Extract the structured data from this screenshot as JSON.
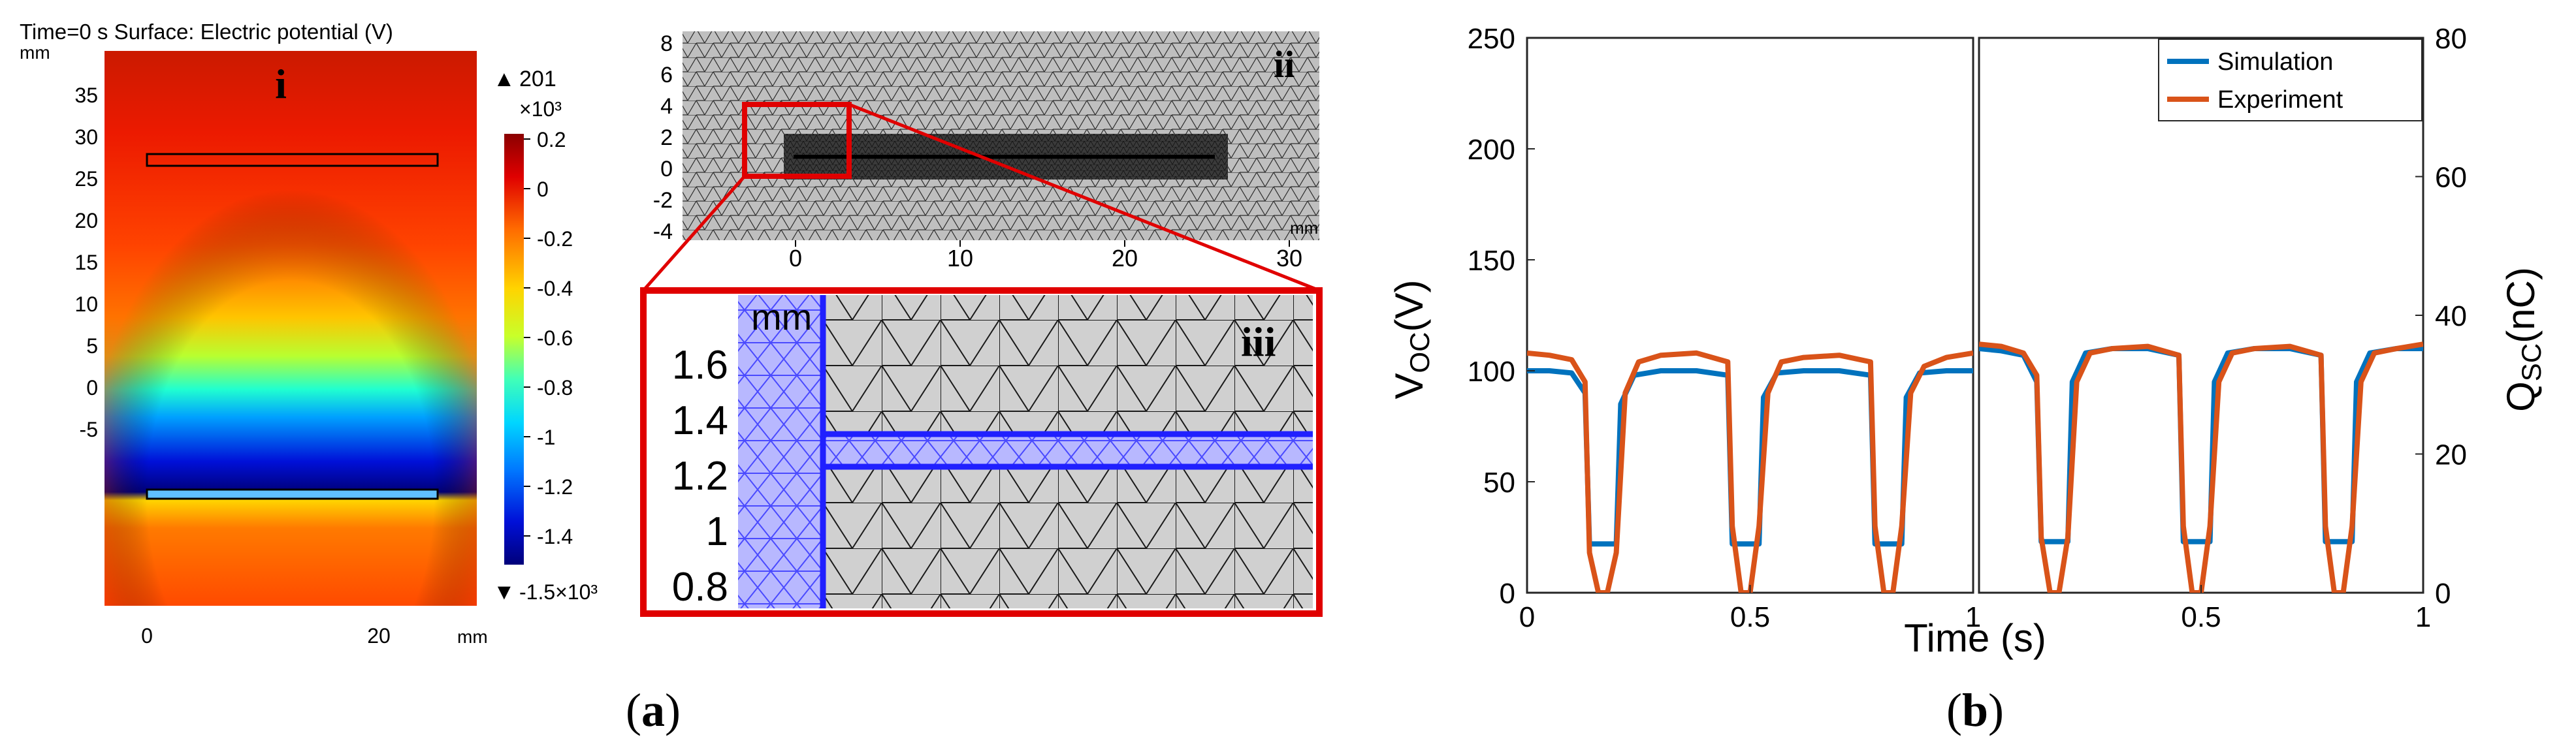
{
  "panel_a": {
    "caption": "(a)",
    "field_plot": {
      "header": "Time=0 s  Surface: Electric potential (V)",
      "label": "i",
      "y_unit": "mm",
      "x_unit": "mm",
      "y_ticks": [
        "35",
        "30",
        "25",
        "20",
        "15",
        "10",
        "5",
        "0",
        "-5"
      ],
      "x_ticks": [
        "0",
        "20"
      ],
      "colorbar": {
        "max_label": "201",
        "multiplier": "×10³",
        "ticks": [
          "0.2",
          "0",
          "-0.2",
          "-0.4",
          "-0.6",
          "-0.8",
          "-1",
          "-1.2",
          "-1.4"
        ],
        "min_label": "-1.5×10³",
        "colormap": "rainbow",
        "colors": [
          "#8b0000",
          "#e00000",
          "#ff6a00",
          "#ffd400",
          "#c8ff2a",
          "#40ffb8",
          "#00d6ff",
          "#0078ff",
          "#0010d8",
          "#00007a"
        ]
      }
    },
    "mesh_plot": {
      "label": "ii",
      "y_ticks": [
        "8",
        "6",
        "4",
        "2",
        "0",
        "-2",
        "-4"
      ],
      "x_ticks": [
        "0",
        "10",
        "20",
        "30"
      ],
      "unit": "mm",
      "highlight_color": "#e00000"
    },
    "zoom_plot": {
      "label": "iii",
      "unit": "mm",
      "y_ticks": [
        "1.6",
        "1.4",
        "1.2",
        "1",
        "0.8"
      ],
      "frame_color": "#e00000",
      "electrode_color": "#2020ff"
    }
  },
  "panel_b": {
    "caption": "(b)",
    "chart_data": {
      "type": "line",
      "xlabel": "Time (s)",
      "ylabel_left": "V_OC(V)",
      "ylabel_right": "Q_SC(nC)",
      "ylim_left": [
        0,
        250
      ],
      "ylim_right": [
        0,
        80
      ],
      "y_ticks_left": [
        0,
        50,
        100,
        150,
        200,
        250
      ],
      "y_ticks_right": [
        0,
        20,
        40,
        60,
        80
      ],
      "legend_position": "top-right",
      "subplots": [
        {
          "xlim": [
            0,
            1
          ],
          "x_ticks": [
            "0",
            "0.5",
            "1"
          ],
          "series": [
            {
              "name": "Simulation",
              "color": "#0072bd",
              "x": [
                0,
                0.05,
                0.1,
                0.13,
                0.14,
                0.2,
                0.21,
                0.24,
                0.3,
                0.38,
                0.45,
                0.46,
                0.52,
                0.53,
                0.56,
                0.62,
                0.7,
                0.77,
                0.78,
                0.84,
                0.85,
                0.88,
                0.94,
                1.0
              ],
              "y": [
                100,
                100,
                99,
                90,
                22,
                22,
                85,
                98,
                100,
                100,
                98,
                22,
                22,
                88,
                99,
                100,
                100,
                98,
                22,
                22,
                88,
                99,
                100,
                100
              ]
            },
            {
              "name": "Experiment",
              "color": "#d95319",
              "x": [
                0,
                0.05,
                0.1,
                0.13,
                0.14,
                0.16,
                0.18,
                0.2,
                0.22,
                0.25,
                0.3,
                0.38,
                0.45,
                0.46,
                0.48,
                0.5,
                0.52,
                0.54,
                0.57,
                0.62,
                0.7,
                0.77,
                0.78,
                0.8,
                0.82,
                0.84,
                0.86,
                0.89,
                0.94,
                1.0
              ],
              "y": [
                108,
                107,
                105,
                95,
                18,
                0,
                0,
                18,
                90,
                104,
                107,
                108,
                104,
                30,
                0,
                0,
                30,
                90,
                104,
                106,
                107,
                104,
                30,
                0,
                0,
                30,
                90,
                102,
                106,
                108
              ]
            }
          ]
        },
        {
          "xlim": [
            0,
            1
          ],
          "x_ticks": [
            "0.5",
            "1"
          ],
          "series": [
            {
              "name": "Simulation",
              "color": "#0072bd",
              "x": [
                0,
                0.05,
                0.1,
                0.13,
                0.14,
                0.2,
                0.21,
                0.24,
                0.3,
                0.38,
                0.45,
                0.46,
                0.52,
                0.53,
                0.56,
                0.62,
                0.7,
                0.77,
                0.78,
                0.84,
                0.85,
                0.88,
                0.94,
                1.0
              ],
              "y": [
                110,
                109,
                107,
                95,
                23,
                23,
                95,
                108,
                110,
                110,
                107,
                23,
                23,
                95,
                108,
                110,
                110,
                107,
                23,
                23,
                95,
                108,
                110,
                110
              ]
            },
            {
              "name": "Experiment",
              "color": "#d95319",
              "x": [
                0,
                0.05,
                0.1,
                0.13,
                0.14,
                0.16,
                0.18,
                0.2,
                0.22,
                0.25,
                0.3,
                0.38,
                0.45,
                0.46,
                0.48,
                0.5,
                0.52,
                0.54,
                0.57,
                0.62,
                0.7,
                0.77,
                0.78,
                0.8,
                0.82,
                0.84,
                0.86,
                0.89,
                0.94,
                1.0
              ],
              "y": [
                112,
                111,
                108,
                98,
                25,
                0,
                0,
                25,
                95,
                108,
                110,
                111,
                107,
                30,
                0,
                0,
                30,
                95,
                108,
                110,
                111,
                107,
                30,
                0,
                0,
                30,
                95,
                108,
                110,
                112
              ]
            }
          ]
        }
      ]
    }
  }
}
